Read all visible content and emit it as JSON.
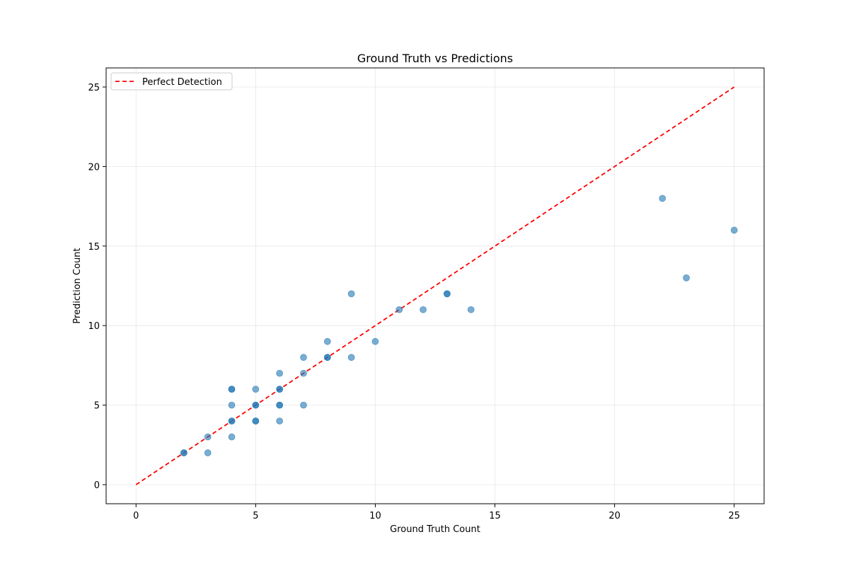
{
  "chart_data": {
    "type": "scatter",
    "title": "Ground Truth vs Predictions",
    "xlabel": "Ground Truth Count",
    "ylabel": "Prediction Count",
    "xlim": [
      -1.25,
      26.25
    ],
    "ylim": [
      -1.2,
      26.2
    ],
    "xticks": [
      0,
      5,
      10,
      15,
      20,
      25
    ],
    "yticks": [
      0,
      5,
      10,
      15,
      20,
      25
    ],
    "grid": true,
    "legend_position": "top-left",
    "series": [
      {
        "kind": "points",
        "color": "#1f77b4",
        "x": [
          2,
          2,
          3,
          3,
          4,
          4,
          4,
          4,
          4,
          4,
          5,
          5,
          5,
          5,
          5,
          6,
          6,
          6,
          6,
          6,
          6,
          7,
          7,
          7,
          8,
          8,
          8,
          9,
          9,
          10,
          11,
          12,
          13,
          13,
          14,
          22,
          23,
          25
        ],
        "y": [
          2,
          2,
          2,
          3,
          3,
          4,
          4,
          5,
          6,
          6,
          4,
          4,
          5,
          5,
          6,
          4,
          5,
          5,
          6,
          6,
          7,
          5,
          7,
          8,
          8,
          8,
          9,
          8,
          12,
          9,
          11,
          11,
          12,
          12,
          11,
          18,
          13,
          16
        ]
      },
      {
        "kind": "line",
        "name": "Perfect Detection",
        "color": "#ff0000",
        "line_style": "dashed",
        "x": [
          0,
          25
        ],
        "y": [
          0,
          25
        ]
      }
    ]
  }
}
